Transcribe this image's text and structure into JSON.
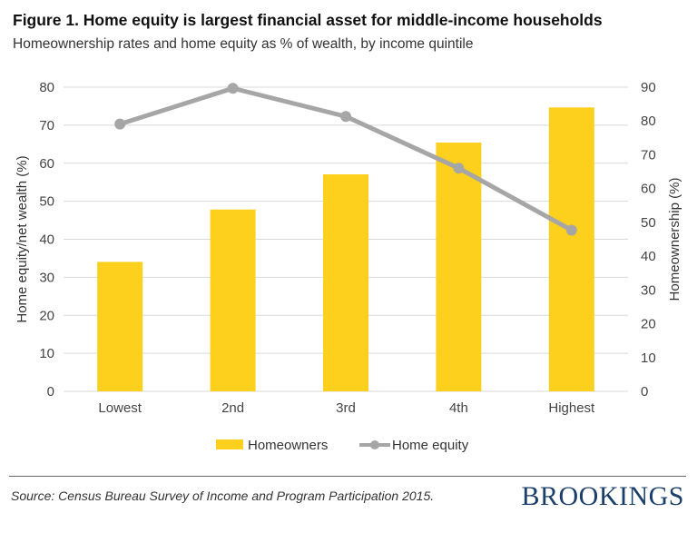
{
  "header": {
    "title": "Figure 1. Home equity is largest financial asset for middle-income households",
    "subtitle": "Homeownership rates and home equity as % of wealth, by income quintile"
  },
  "footer": {
    "source": "Source: Census Bureau Survey of Income and Program Participation 2015.",
    "brand": "BROOKINGS"
  },
  "colors": {
    "bar": "#fcd01c",
    "line": "#a6a6a6",
    "grid": "#d9d9d9",
    "brand": "#1b3f6b"
  },
  "chart_data": {
    "type": "bar",
    "categories": [
      "Lowest",
      "2nd",
      "3rd",
      "4th",
      "Highest"
    ],
    "series": [
      {
        "name": "Homeowners",
        "type": "bar",
        "axis": "right",
        "values": [
          38.3,
          53.8,
          64.2,
          73.6,
          84.0
        ]
      },
      {
        "name": "Home equity",
        "type": "line",
        "axis": "left",
        "values": [
          70.3,
          79.7,
          72.3,
          58.7,
          42.4
        ]
      }
    ],
    "ylabel": "Home equity/net wealth (%)",
    "ylim": [
      0,
      80
    ],
    "yticks": [
      0,
      10,
      20,
      30,
      40,
      50,
      60,
      70,
      80
    ],
    "y2label": "Homeownership (%)",
    "y2lim": [
      0,
      90
    ],
    "y2ticks": [
      0,
      10,
      20,
      30,
      40,
      50,
      60,
      70,
      80,
      90
    ],
    "grid": true,
    "legend": "bottom"
  }
}
